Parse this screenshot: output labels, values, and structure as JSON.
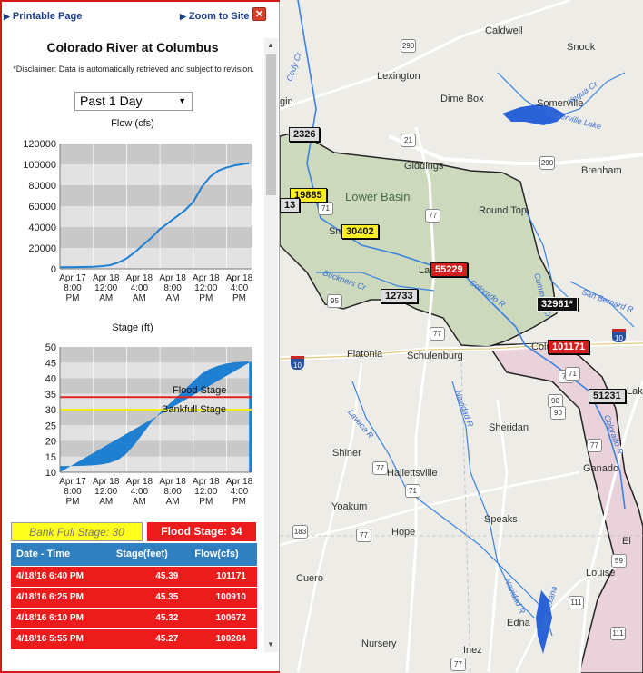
{
  "panel": {
    "printable_label": "Printable Page",
    "zoom_label": "Zoom to Site",
    "close_label": "✕",
    "title": "Colorado River at Columbus",
    "disclaimer": "*Disclaimer: Data is automatically retrieved and subject to revision.",
    "range_selected": "Past 1 Day",
    "bank_full_label": "Bank Full Stage: 30",
    "flood_stage_label": "Flood Stage: 34"
  },
  "table": {
    "headers": [
      "Date - Time",
      "Stage(feet)",
      "Flow(cfs)"
    ],
    "rows": [
      [
        "4/18/16 6:40 PM",
        "45.39",
        "101171"
      ],
      [
        "4/18/16 6:25 PM",
        "45.35",
        "100910"
      ],
      [
        "4/18/16 6:10 PM",
        "45.32",
        "100672"
      ],
      [
        "4/18/16 5:55 PM",
        "45.27",
        "100264"
      ]
    ]
  },
  "chart_data": [
    {
      "type": "line",
      "title": "Flow (cfs)",
      "x_tick_labels": [
        [
          "Apr 17",
          "8:00",
          "PM"
        ],
        [
          "Apr 18",
          "12:00",
          "AM"
        ],
        [
          "Apr 18",
          "4:00",
          "AM"
        ],
        [
          "Apr 18",
          "8:00",
          "AM"
        ],
        [
          "Apr 18",
          "12:00",
          "PM"
        ],
        [
          "Apr 18",
          "4:00",
          "PM"
        ]
      ],
      "x_hours": [
        0,
        4,
        8,
        12,
        16,
        20
      ],
      "ylim": [
        0,
        120000
      ],
      "y_ticks": [
        0,
        20000,
        40000,
        60000,
        80000,
        100000,
        120000
      ],
      "series": [
        {
          "color": "#1f7fd1",
          "x": [
            0,
            2,
            4,
            5,
            6,
            7,
            8,
            9,
            10,
            11,
            12,
            13,
            14,
            15,
            16,
            17,
            18,
            19,
            20,
            21,
            22.7
          ],
          "y": [
            1500,
            1600,
            2000,
            2500,
            3500,
            6000,
            10000,
            16000,
            23000,
            30000,
            38000,
            44000,
            50000,
            56000,
            64000,
            78000,
            88000,
            94000,
            97000,
            99000,
            101171
          ]
        }
      ],
      "grid": true
    },
    {
      "type": "area",
      "title": "Stage (ft)",
      "x_tick_labels": [
        [
          "Apr 17",
          "8:00",
          "PM"
        ],
        [
          "Apr 18",
          "12:00",
          "AM"
        ],
        [
          "Apr 18",
          "4:00",
          "AM"
        ],
        [
          "Apr 18",
          "8:00",
          "AM"
        ],
        [
          "Apr 18",
          "12:00",
          "PM"
        ],
        [
          "Apr 18",
          "4:00",
          "PM"
        ]
      ],
      "x_hours": [
        0,
        4,
        8,
        12,
        16,
        20
      ],
      "ylim": [
        10,
        50
      ],
      "y_ticks": [
        10,
        15,
        20,
        25,
        30,
        35,
        40,
        45,
        50
      ],
      "series": [
        {
          "color": "#1f7fd1",
          "x": [
            0,
            2,
            4,
            5,
            6,
            7,
            8,
            9,
            10,
            11,
            12,
            13,
            14,
            15,
            16,
            17,
            18,
            19,
            20,
            21,
            22.7
          ],
          "y": [
            12.0,
            12.0,
            12.2,
            12.5,
            13.0,
            14.0,
            16.0,
            19.0,
            22.5,
            26.0,
            29.0,
            31.5,
            34.0,
            36.5,
            39.0,
            41.5,
            43.0,
            44.0,
            44.7,
            45.1,
            45.39
          ]
        }
      ],
      "thresholds": [
        {
          "label": "Flood Stage",
          "value": 34,
          "color": "#e32222"
        },
        {
          "label": "Bankfull Stage",
          "value": 30,
          "color": "#f2ec1c"
        }
      ],
      "grid": true
    }
  ],
  "map": {
    "basin_label": "Lower Basin",
    "towns": [
      "Caldwell",
      "Snook",
      "Lexington",
      "Dime Box",
      "Somerville",
      "Giddings",
      "Brenham",
      "Round Top",
      "Flatonia",
      "Schulenburg",
      "Sheridan",
      "Shiner",
      "Hallettsville",
      "Yoakum",
      "Hope",
      "Speaks",
      "Cuero",
      "Edna",
      "Nursery",
      "Inez",
      "Louise",
      "Ganado",
      "El",
      "Lak",
      "Colu",
      "La",
      "Sm",
      "gin"
    ],
    "gauges": [
      "2326",
      "19885",
      "13",
      "30402",
      "55229",
      "12733",
      "32961*",
      "101171",
      "51231"
    ],
    "creeks": [
      "Yegua Cr",
      "Buckners Cr",
      "Colorado R",
      "Cummins Cr",
      "San Bernard R",
      "Lavaca R",
      "Navidad R",
      "Colorado R",
      "Navidad R",
      "Lake Texana",
      "Somerville Lake",
      "Cedy Cr"
    ],
    "shields": [
      "21",
      "77",
      "290",
      "290",
      "71",
      "77",
      "95",
      "10",
      "10",
      "71",
      "90",
      "90",
      "77",
      "71",
      "77",
      "77",
      "111",
      "183",
      "59",
      "111",
      "71",
      "77"
    ]
  }
}
